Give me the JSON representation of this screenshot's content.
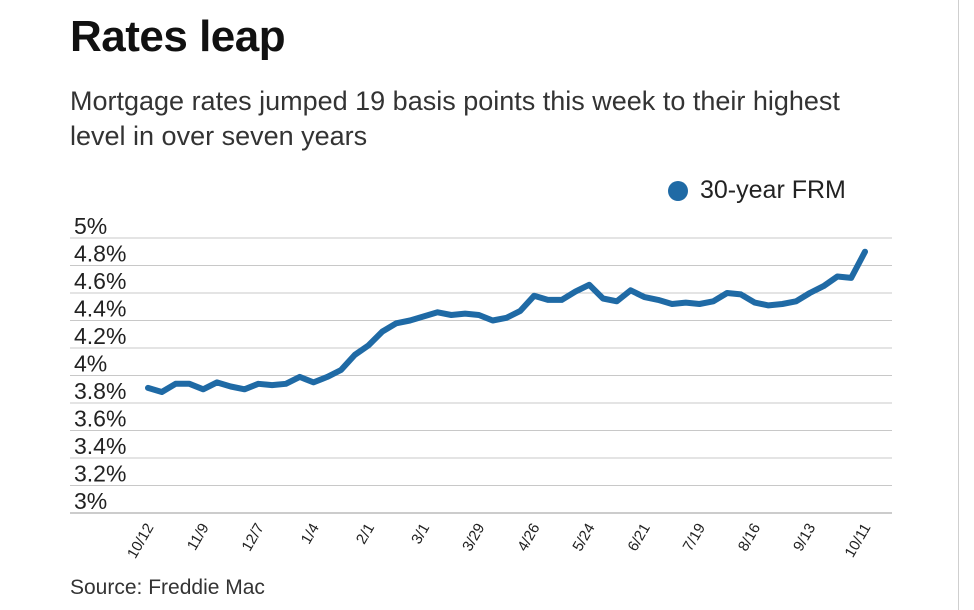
{
  "title": "Rates leap",
  "subtitle": "Mortgage rates jumped 19 basis points this week to their highest level in over seven years",
  "source": "Source: Freddie Mac",
  "legend": {
    "label": "30-year FRM",
    "color": "#1f6aa5"
  },
  "chart_data": {
    "type": "line",
    "title": "Rates leap",
    "subtitle": "Mortgage rates jumped 19 basis points this week to their highest level in over seven years",
    "ylim": [
      3.0,
      5.0
    ],
    "y_ticks": [
      {
        "value": 5.0,
        "label": "5%"
      },
      {
        "value": 4.8,
        "label": "4.8%"
      },
      {
        "value": 4.6,
        "label": "4.6%"
      },
      {
        "value": 4.4,
        "label": "4.4%"
      },
      {
        "value": 4.2,
        "label": "4.2%"
      },
      {
        "value": 4.0,
        "label": "4%"
      },
      {
        "value": 3.8,
        "label": "3.8%"
      },
      {
        "value": 3.6,
        "label": "3.6%"
      },
      {
        "value": 3.4,
        "label": "3.4%"
      },
      {
        "value": 3.2,
        "label": "3.2%"
      },
      {
        "value": 3.0,
        "label": "3%"
      }
    ],
    "x_ticks": [
      {
        "index": 0,
        "label": "10/12"
      },
      {
        "index": 4,
        "label": "11/9"
      },
      {
        "index": 8,
        "label": "12/7"
      },
      {
        "index": 12,
        "label": "1/4"
      },
      {
        "index": 16,
        "label": "2/1"
      },
      {
        "index": 20,
        "label": "3/1"
      },
      {
        "index": 24,
        "label": "3/29"
      },
      {
        "index": 28,
        "label": "4/26"
      },
      {
        "index": 32,
        "label": "5/24"
      },
      {
        "index": 36,
        "label": "6/21"
      },
      {
        "index": 40,
        "label": "7/19"
      },
      {
        "index": 44,
        "label": "8/16"
      },
      {
        "index": 48,
        "label": "9/13"
      },
      {
        "index": 52,
        "label": "10/11"
      }
    ],
    "grid": true,
    "legend_position": "top-right",
    "series": [
      {
        "name": "30-year FRM",
        "color": "#1f6aa5",
        "values": [
          3.91,
          3.88,
          3.94,
          3.94,
          3.9,
          3.95,
          3.92,
          3.9,
          3.94,
          3.93,
          3.94,
          3.99,
          3.95,
          3.99,
          4.04,
          4.15,
          4.22,
          4.32,
          4.38,
          4.4,
          4.43,
          4.46,
          4.44,
          4.45,
          4.44,
          4.4,
          4.42,
          4.47,
          4.58,
          4.55,
          4.55,
          4.61,
          4.66,
          4.56,
          4.54,
          4.62,
          4.57,
          4.55,
          4.52,
          4.53,
          4.52,
          4.54,
          4.6,
          4.59,
          4.53,
          4.51,
          4.52,
          4.54,
          4.6,
          4.65,
          4.72,
          4.71,
          4.9
        ]
      }
    ]
  }
}
